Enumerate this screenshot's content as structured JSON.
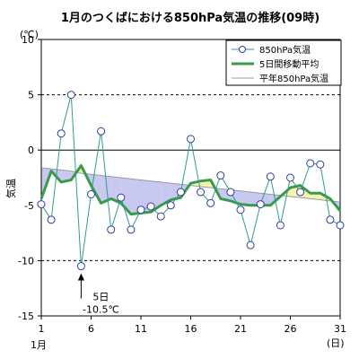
{
  "chart_data": {
    "type": "line",
    "title": "1月のつくばにおける850hPa気温の推移(09時)",
    "xlabel": "",
    "ylabel": "気温",
    "yunit": "(℃)",
    "xunit": "(日)",
    "month_label": "1月",
    "xlim": [
      1,
      31
    ],
    "ylim": [
      -15,
      10
    ],
    "x_ticks": [
      1,
      6,
      11,
      16,
      21,
      26,
      31
    ],
    "y_ticks": [
      10,
      5,
      0,
      -5,
      -10,
      -15
    ],
    "grid": "dashed horizontal at 5 and -10",
    "legend": "top-right",
    "x": [
      1,
      2,
      3,
      4,
      5,
      6,
      7,
      8,
      9,
      10,
      11,
      12,
      13,
      14,
      15,
      16,
      17,
      18,
      19,
      20,
      21,
      22,
      23,
      24,
      25,
      26,
      27,
      28,
      29,
      30,
      31
    ],
    "series": [
      {
        "name": "850hPa気温",
        "color": "#2e9e8e",
        "values": [
          -4.9,
          -6.3,
          1.5,
          5.0,
          -10.5,
          -4.0,
          1.7,
          -7.2,
          -4.3,
          -7.2,
          -5.4,
          -5.1,
          -6.0,
          -5.0,
          -3.8,
          1.0,
          -3.8,
          -4.8,
          -2.3,
          -3.8,
          -5.4,
          -8.6,
          -4.9,
          -2.4,
          -6.8,
          -2.5,
          -3.8,
          -1.2,
          -1.3,
          -6.3,
          -6.8
        ]
      },
      {
        "name": "5日間移動平均",
        "color": "#3a9a4a",
        "values": [
          -4.4,
          -1.9,
          -2.9,
          -2.7,
          -1.4,
          -3.2,
          -4.8,
          -4.4,
          -4.8,
          -5.8,
          -5.7,
          -5.6,
          -5.0,
          -4.5,
          -4.3,
          -3.0,
          -2.8,
          -2.7,
          -4.4,
          -4.6,
          -4.9,
          -5.0,
          -5.0,
          -5.0,
          -4.2,
          -3.4,
          -3.2,
          -3.9,
          -3.9,
          -4.4,
          -5.5
        ]
      },
      {
        "name": "平年850hPa気温",
        "color": "#9a9aa4",
        "values": [
          -1.6,
          -1.7,
          -1.8,
          -1.9,
          -2.1,
          -2.2,
          -2.3,
          -2.4,
          -2.5,
          -2.6,
          -2.7,
          -2.8,
          -2.9,
          -3.0,
          -3.1,
          -3.2,
          -3.3,
          -3.4,
          -3.5,
          -3.6,
          -3.7,
          -3.8,
          -3.9,
          -4.0,
          -4.1,
          -4.2,
          -4.3,
          -4.4,
          -4.5,
          -4.6,
          -4.7
        ]
      }
    ],
    "annotation": {
      "day_label": "5日",
      "value_label": "-10.5℃",
      "x": 5,
      "y": -10.5
    },
    "fill_colors": {
      "below_normal": "#c8c8f0",
      "above_normal": "#f6f2b0"
    }
  }
}
